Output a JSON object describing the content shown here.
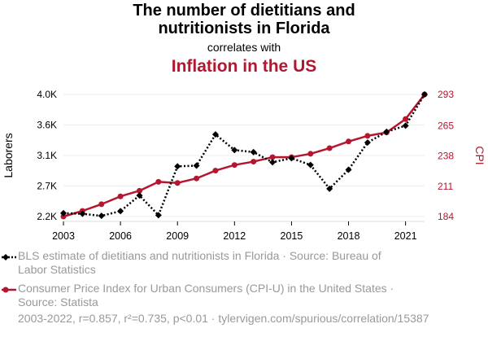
{
  "title_line1": "The number of dietitians and",
  "title_line2": "nutritionists in Florida",
  "correlates": "correlates with",
  "title_line3": "Inflation in the US",
  "chart_data": {
    "type": "line",
    "x": [
      2003,
      2004,
      2005,
      2006,
      2007,
      2008,
      2009,
      2010,
      2011,
      2012,
      2013,
      2014,
      2015,
      2016,
      2017,
      2018,
      2019,
      2020,
      2021,
      2022
    ],
    "series": [
      {
        "name": "BLS estimate of dietitians and nutritionists in Florida · Source: Bureau of Labor Statistics",
        "axis": "left",
        "color": "#000000",
        "style": "dotted",
        "marker": "diamond",
        "values": [
          2250,
          2240,
          2210,
          2280,
          2510,
          2220,
          2940,
          2950,
          3410,
          3180,
          3150,
          3000,
          3060,
          2960,
          2610,
          2890,
          3290,
          3450,
          3540,
          4000
        ]
      },
      {
        "name": "Consumer Price Index for Urban Consumers (CPI-U) in the United States · Source: Statista",
        "axis": "right",
        "color": "#b5162f",
        "style": "solid",
        "marker": "circle",
        "values": [
          184,
          189,
          195,
          202,
          207,
          215,
          214,
          218,
          225,
          230,
          233,
          237,
          237,
          240,
          245,
          251,
          256,
          259,
          271,
          293
        ]
      }
    ],
    "y_left": {
      "label": "Laborers",
      "ticks": [
        "2.2K",
        "2.7K",
        "3.1K",
        "3.6K",
        "4.0K"
      ],
      "tick_values": [
        2200,
        2650,
        3100,
        3550,
        4000
      ],
      "range": [
        2200,
        4000
      ]
    },
    "y_right": {
      "label": "CPI",
      "ticks": [
        "184",
        "211",
        "238",
        "265",
        "293"
      ],
      "tick_values": [
        184,
        211,
        238,
        265,
        293
      ],
      "range": [
        184,
        293
      ]
    },
    "x_ticks": [
      "2003",
      "2006",
      "2009",
      "2012",
      "2015",
      "2018",
      "2021"
    ],
    "x_tick_values": [
      2003,
      2006,
      2009,
      2012,
      2015,
      2018,
      2021
    ],
    "x_range": [
      2003,
      2022
    ],
    "grid": "horizontal"
  },
  "legend": [
    {
      "text": "BLS estimate of dietitians and nutritionists in Florida · Source: Bureau of Labor Statistics"
    },
    {
      "text": "Consumer Price Index for Urban Consumers (CPI-U) in the United States · Source: Statista"
    }
  ],
  "footer": "2003-2022, r=0.857, r²=0.735, p<0.01 · tylervigen.com/spurious/correlation/15387",
  "colors": {
    "accent": "#b5162f",
    "black": "#000000",
    "gray": "#999999",
    "grid": "#eeeeee"
  }
}
